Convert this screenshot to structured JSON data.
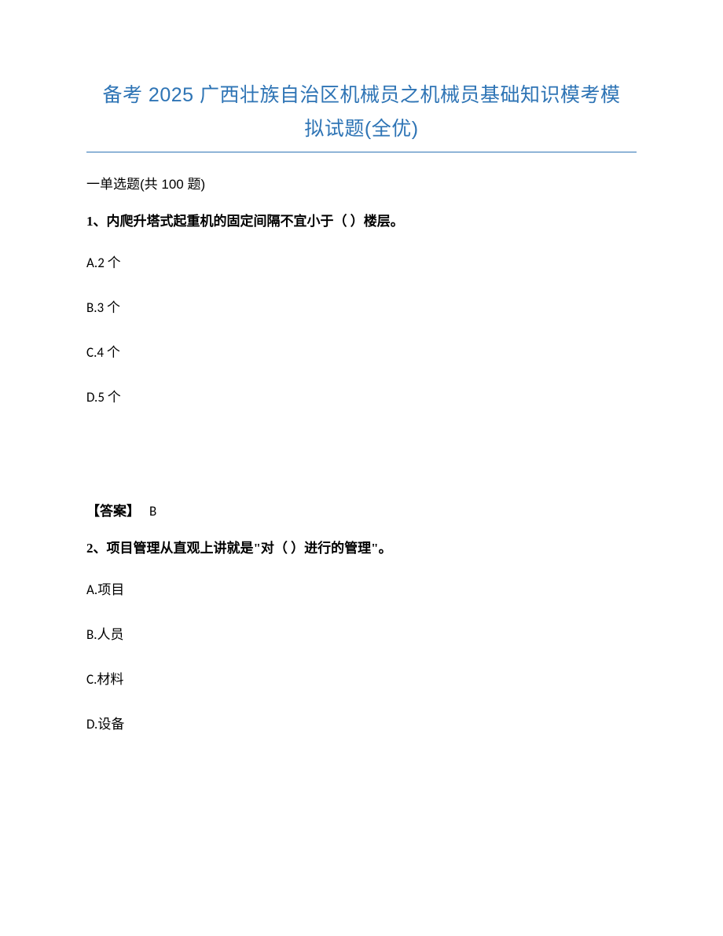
{
  "title": {
    "line1": "备考 2025 广西壮族自治区机械员之机械员基础知识模考模",
    "line2": "拟试题(全优)",
    "color": "#2e74b5",
    "fontsize": 25
  },
  "divider": {
    "color": "#2e74b5"
  },
  "section": {
    "prefix": "一",
    "label": "单选题(共 100 题)"
  },
  "questions": [
    {
      "number": "1、",
      "stem": "内爬升塔式起重机的固定间隔不宜小于（ ）楼层。",
      "options": [
        {
          "key": "A",
          "text": "A.2 个"
        },
        {
          "key": "B",
          "text": "B.3 个"
        },
        {
          "key": "C",
          "text": "C.4 个"
        },
        {
          "key": "D",
          "text": "D.5 个"
        }
      ],
      "answer_label": "【答案】",
      "answer_value": "B"
    },
    {
      "number": "2、",
      "stem": "项目管理从直观上讲就是\"对（ ）进行的管理\"。",
      "options": [
        {
          "key": "A",
          "text": "A.项目"
        },
        {
          "key": "B",
          "text": "B.人员"
        },
        {
          "key": "C",
          "text": "C.材料"
        },
        {
          "key": "D",
          "text": "D.设备"
        }
      ]
    }
  ],
  "style": {
    "text_color": "#000000",
    "body_fontsize": 17,
    "background_color": "#ffffff"
  }
}
